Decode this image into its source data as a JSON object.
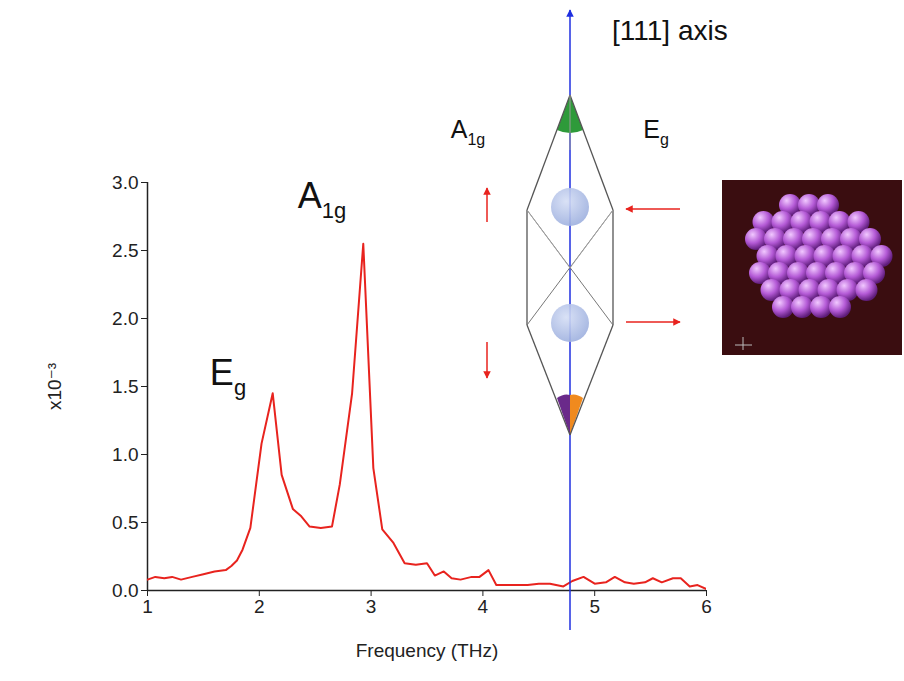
{
  "chart_data": {
    "type": "line",
    "x_label": "Frequency (THz)",
    "y_label": "x10⁻³",
    "color": "#e8231e",
    "grid": false,
    "xlim": [
      1,
      6
    ],
    "xticks": [
      1,
      2,
      3,
      4,
      5,
      6
    ],
    "ylim": [
      0,
      3.0
    ],
    "yticks": [
      {
        "value": 0,
        "label": "0.0"
      },
      {
        "value": 0.5,
        "label": "0.5"
      },
      {
        "value": 1.0,
        "label": "1.0"
      },
      {
        "value": 1.5,
        "label": "1.5"
      },
      {
        "value": 2.0,
        "label": "2.0"
      },
      {
        "value": 2.5,
        "label": "2.5"
      },
      {
        "value": 3.0,
        "label": "3.0"
      }
    ],
    "x": [
      1.0,
      1.07,
      1.15,
      1.22,
      1.3,
      1.4,
      1.5,
      1.6,
      1.7,
      1.75,
      1.8,
      1.85,
      1.92,
      2.02,
      2.12,
      2.2,
      2.3,
      2.37,
      2.45,
      2.55,
      2.65,
      2.72,
      2.83,
      2.93,
      3.02,
      3.1,
      3.2,
      3.3,
      3.4,
      3.5,
      3.57,
      3.65,
      3.72,
      3.8,
      3.9,
      3.97,
      4.05,
      4.12,
      4.25,
      4.4,
      4.5,
      4.6,
      4.72,
      4.8,
      4.9,
      5.0,
      5.1,
      5.18,
      5.27,
      5.35,
      5.45,
      5.52,
      5.6,
      5.7,
      5.77,
      5.85,
      5.92,
      6.0
    ],
    "values": [
      0.08,
      0.1,
      0.09,
      0.1,
      0.08,
      0.1,
      0.12,
      0.14,
      0.15,
      0.18,
      0.22,
      0.3,
      0.46,
      1.08,
      1.45,
      0.85,
      0.6,
      0.55,
      0.47,
      0.46,
      0.47,
      0.78,
      1.45,
      2.55,
      0.9,
      0.45,
      0.35,
      0.2,
      0.19,
      0.2,
      0.11,
      0.14,
      0.09,
      0.08,
      0.1,
      0.1,
      0.15,
      0.04,
      0.04,
      0.04,
      0.05,
      0.05,
      0.03,
      0.07,
      0.1,
      0.05,
      0.06,
      0.1,
      0.06,
      0.05,
      0.06,
      0.09,
      0.06,
      0.09,
      0.09,
      0.03,
      0.04,
      0.01
    ],
    "annotations": [
      "Eg",
      "A1g"
    ],
    "inset_labels": [
      "[111] axis",
      "A1g",
      "Eg"
    ]
  }
}
